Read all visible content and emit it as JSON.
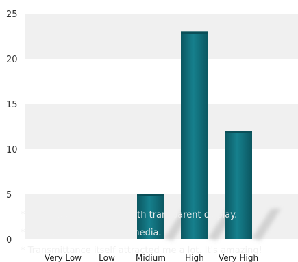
{
  "chart_data": {
    "type": "bar",
    "categories": [
      "Very Low",
      "Low",
      "Midium",
      "High",
      "Very High"
    ],
    "values": [
      0,
      0,
      5,
      23,
      12
    ],
    "ylim": [
      0,
      25
    ],
    "yticks": [
      0,
      5,
      10,
      15,
      20,
      25
    ],
    "grid": true,
    "colors": {
      "bar": "#106a76",
      "bar_highlight": "#1a8390",
      "bar_shadow": "#0a4f58",
      "band": "#f0f0f0",
      "shadow": "#bdbdbd"
    }
  },
  "annotations": [
    "* I can see real product with transparent display.",
    "* It's first-ever new tech media.",
    "* Transmittance itself attracted me a lot. It's amazing!"
  ]
}
